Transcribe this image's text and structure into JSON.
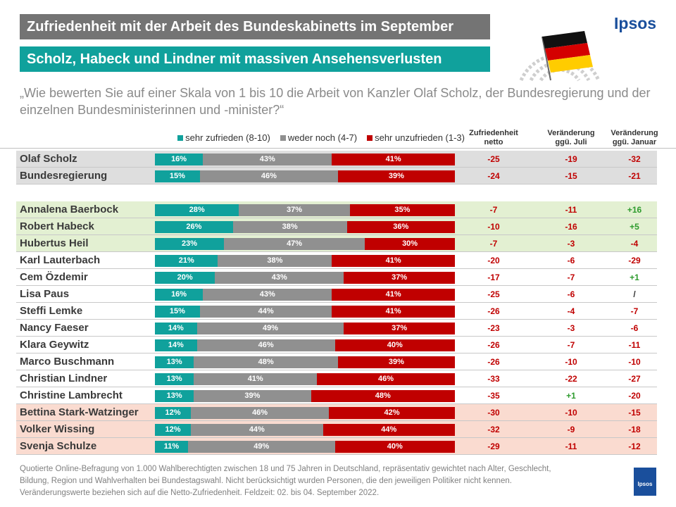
{
  "header": {
    "title": "Zufriedenheit mit der Arbeit des Bundeskabinetts im September",
    "subtitle": "Scholz, Habeck und Lindner mit massiven Ansehensverlusten",
    "logo": "Ipsos",
    "small_logo": "Ipsos"
  },
  "question": "„Wie bewerten Sie auf einer Skala von 1 bis 10 die Arbeit von Kanzler Olaf Scholz, der Bundesregierung und der einzelnen Bundesministerinnen und -minister?“",
  "legend": [
    {
      "label": "sehr zufrieden (8-10)",
      "color": "#10a19c"
    },
    {
      "label": "weder noch (4-7)",
      "color": "#909090"
    },
    {
      "label": "sehr unzufrieden (1-3)",
      "color": "#c00000"
    }
  ],
  "columns": {
    "netto": "Zufriedenheit netto",
    "juli": "Veränderung ggü. Juli",
    "januar": "Veränderung ggü. Januar"
  },
  "footnote": "Quotierte Online-Befragung von 1.000 Wahlberechtigten zwischen 18 und 75 Jahren in Deutschland, repräsentativ gewichtet nach Alter, Geschlecht, Bildung, Region und Wahlverhalten bei Bundestagswahl. Nicht berücksichtigt wurden Personen, die den jeweiligen Politiker nicht kennen. Veränderungswerte beziehen sich auf die Netto-Zufriedenheit. Feldzeit: 02. bis 04. September 2022.",
  "colors": {
    "positive": "#10a19c",
    "neutral": "#909090",
    "negative": "#c00000",
    "change_negative": "#c00000",
    "change_positive": "#2e9b2e",
    "change_neutral": "#333333",
    "band_gray": "#dedede",
    "band_green": "#e3f0d2",
    "band_red": "#fadbd0"
  },
  "chart_data": {
    "type": "bar",
    "stacked": true,
    "orientation": "horizontal",
    "title": "Zufriedenheit mit der Arbeit des Bundeskabinetts im September",
    "subtitle": "Scholz, Habeck und Lindner mit massiven Ansehensverlusten",
    "series": [
      {
        "name": "sehr zufrieden (8-10)",
        "values": [
          16,
          15,
          28,
          26,
          23,
          21,
          20,
          16,
          15,
          14,
          14,
          13,
          13,
          13,
          12,
          12,
          11
        ]
      },
      {
        "name": "weder noch (4-7)",
        "values": [
          43,
          46,
          37,
          38,
          47,
          38,
          43,
          43,
          44,
          49,
          46,
          48,
          41,
          39,
          46,
          44,
          49
        ]
      },
      {
        "name": "sehr unzufrieden (1-3)",
        "values": [
          41,
          39,
          35,
          36,
          30,
          41,
          37,
          41,
          41,
          37,
          40,
          39,
          46,
          48,
          42,
          44,
          40
        ]
      }
    ],
    "rows": [
      {
        "name": "Olaf Scholz",
        "netto": "-25",
        "juli": "-19",
        "januar": "-32",
        "group": "gray"
      },
      {
        "name": "Bundesregierung",
        "netto": "-24",
        "juli": "-15",
        "januar": "-21",
        "group": "gray"
      },
      {
        "name": "Annalena Baerbock",
        "netto": "-7",
        "juli": "-11",
        "januar": "+16",
        "group": "green"
      },
      {
        "name": "Robert Habeck",
        "netto": "-10",
        "juli": "-16",
        "januar": "+5",
        "group": "green"
      },
      {
        "name": "Hubertus Heil",
        "netto": "-7",
        "juli": "-3",
        "januar": "-4",
        "group": "green"
      },
      {
        "name": "Karl Lauterbach",
        "netto": "-20",
        "juli": "-6",
        "januar": "-29",
        "group": "none"
      },
      {
        "name": "Cem Özdemir",
        "netto": "-17",
        "juli": "-7",
        "januar": "+1",
        "group": "none"
      },
      {
        "name": "Lisa Paus",
        "netto": "-25",
        "juli": "-6",
        "januar": "/",
        "group": "none"
      },
      {
        "name": "Steffi Lemke",
        "netto": "-26",
        "juli": "-4",
        "januar": "-7",
        "group": "none"
      },
      {
        "name": "Nancy Faeser",
        "netto": "-23",
        "juli": "-3",
        "januar": "-6",
        "group": "none"
      },
      {
        "name": "Klara Geywitz",
        "netto": "-26",
        "juli": "-7",
        "januar": "-11",
        "group": "none"
      },
      {
        "name": "Marco Buschmann",
        "netto": "-26",
        "juli": "-10",
        "januar": "-10",
        "group": "none"
      },
      {
        "name": "Christian Lindner",
        "netto": "-33",
        "juli": "-22",
        "januar": "-27",
        "group": "none"
      },
      {
        "name": "Christine Lambrecht",
        "netto": "-35",
        "juli": "+1",
        "januar": "-20",
        "group": "none"
      },
      {
        "name": "Bettina Stark-Watzinger",
        "netto": "-30",
        "juli": "-10",
        "januar": "-15",
        "group": "red"
      },
      {
        "name": "Volker Wissing",
        "netto": "-32",
        "juli": "-9",
        "januar": "-18",
        "group": "red"
      },
      {
        "name": "Svenja Schulze",
        "netto": "-29",
        "juli": "-11",
        "januar": "-12",
        "group": "red"
      }
    ],
    "value_format": "percent",
    "xlim": [
      0,
      100
    ],
    "legend_position": "top"
  }
}
